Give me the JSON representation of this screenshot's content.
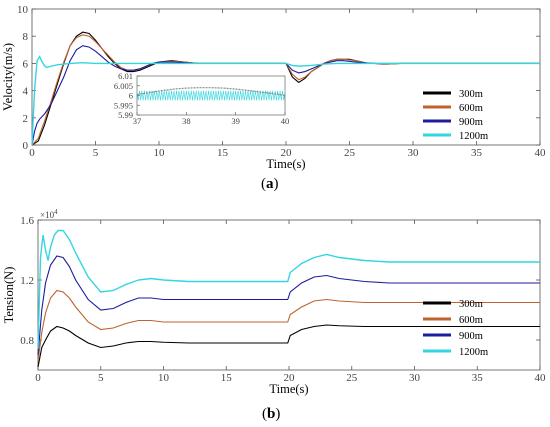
{
  "chart_data": [
    {
      "type": "line",
      "panel_label": "(a)",
      "panel_letter": "a",
      "xlabel": "Time(s)",
      "ylabel": "Velocity(m/s)",
      "xlim": [
        0,
        40
      ],
      "ylim": [
        0,
        10
      ],
      "xticks": [
        "0",
        "5",
        "10",
        "15",
        "20",
        "25",
        "30",
        "35",
        "40"
      ],
      "yticks": [
        "0",
        "2",
        "4",
        "6",
        "8",
        "10"
      ],
      "grid": false,
      "legend_position": "lower-right",
      "series": [
        {
          "name": "300m",
          "color": "#000000",
          "x": [
            0.0,
            0.5,
            1.0,
            1.5,
            2.0,
            2.5,
            3.0,
            3.5,
            4.0,
            4.5,
            5.0,
            5.5,
            6.0,
            6.5,
            7.0,
            7.5,
            8.0,
            8.5,
            9.0,
            9.5,
            10.0,
            11.0,
            12.0,
            13.0,
            14.0,
            15.0,
            16.0,
            17.0,
            18.0,
            19.0,
            20.0,
            20.5,
            21.0,
            21.5,
            22.0,
            22.5,
            23.0,
            23.5,
            24.0,
            24.5,
            25.0,
            25.5,
            26.0,
            26.5,
            27.0,
            27.5,
            28.0,
            29.0,
            30.0,
            32.0,
            35.0,
            38.0,
            40.0
          ],
          "y": [
            0.0,
            0.3,
            1.5,
            3.0,
            4.5,
            6.0,
            7.3,
            8.0,
            8.3,
            8.2,
            7.7,
            7.1,
            6.5,
            6.0,
            5.6,
            5.4,
            5.4,
            5.5,
            5.7,
            5.9,
            6.1,
            6.2,
            6.1,
            6.0,
            6.0,
            6.0,
            6.0,
            6.0,
            6.0,
            6.0,
            6.0,
            5.0,
            4.6,
            4.9,
            5.4,
            5.7,
            6.0,
            6.2,
            6.3,
            6.3,
            6.3,
            6.2,
            6.1,
            6.0,
            6.0,
            5.95,
            5.95,
            6.0,
            6.0,
            6.0,
            6.0,
            6.0,
            6.0
          ]
        },
        {
          "name": "600m",
          "color": "#c0622e",
          "x": [
            0.0,
            0.5,
            1.0,
            1.5,
            2.0,
            2.5,
            3.0,
            3.5,
            4.0,
            4.5,
            5.0,
            5.5,
            6.0,
            6.5,
            7.0,
            7.5,
            8.0,
            8.5,
            9.0,
            9.5,
            10.0,
            11.0,
            12.0,
            13.0,
            14.0,
            15.0,
            16.0,
            17.0,
            18.0,
            19.0,
            20.0,
            20.5,
            21.0,
            21.5,
            22.0,
            22.5,
            23.0,
            23.5,
            24.0,
            24.5,
            25.0,
            25.5,
            26.0,
            26.5,
            27.0,
            27.5,
            28.0,
            29.0,
            30.0,
            32.0,
            35.0,
            38.0,
            40.0
          ],
          "y": [
            0.0,
            0.5,
            1.8,
            3.2,
            4.7,
            6.1,
            7.3,
            7.9,
            8.1,
            8.0,
            7.6,
            7.1,
            6.6,
            6.1,
            5.7,
            5.5,
            5.5,
            5.6,
            5.8,
            6.0,
            6.1,
            6.15,
            6.1,
            6.0,
            6.0,
            6.0,
            6.0,
            6.0,
            6.0,
            6.0,
            6.0,
            5.2,
            4.8,
            5.0,
            5.4,
            5.7,
            6.0,
            6.2,
            6.3,
            6.3,
            6.25,
            6.2,
            6.1,
            6.0,
            6.0,
            5.95,
            5.95,
            6.0,
            6.0,
            6.0,
            6.0,
            6.0,
            6.0
          ]
        },
        {
          "name": "900m",
          "color": "#1c1c9c",
          "x": [
            0.0,
            0.2,
            0.4,
            0.6,
            1.0,
            1.5,
            2.0,
            2.5,
            3.0,
            3.5,
            4.0,
            4.5,
            5.0,
            5.5,
            6.0,
            6.5,
            7.0,
            7.5,
            8.0,
            8.5,
            9.0,
            9.5,
            10.0,
            11.0,
            12.0,
            13.0,
            14.0,
            15.0,
            16.0,
            17.0,
            18.0,
            19.0,
            20.0,
            20.5,
            21.0,
            21.5,
            22.0,
            22.5,
            23.0,
            23.5,
            24.0,
            24.5,
            25.0,
            25.5,
            26.0,
            27.0,
            28.0,
            30.0,
            32.0,
            35.0,
            38.0,
            40.0
          ],
          "y": [
            0.0,
            1.0,
            1.6,
            1.9,
            2.3,
            3.0,
            4.0,
            5.0,
            6.2,
            7.0,
            7.3,
            7.2,
            6.9,
            6.5,
            6.1,
            5.8,
            5.6,
            5.5,
            5.5,
            5.6,
            5.8,
            6.0,
            6.1,
            6.1,
            6.05,
            6.0,
            6.0,
            6.0,
            6.0,
            6.0,
            6.0,
            6.0,
            6.0,
            5.5,
            5.3,
            5.4,
            5.6,
            5.8,
            6.0,
            6.1,
            6.2,
            6.2,
            6.15,
            6.1,
            6.05,
            6.0,
            6.0,
            6.0,
            6.0,
            6.0,
            6.0,
            6.0
          ]
        },
        {
          "name": "1200m",
          "color": "#33d6e0",
          "x": [
            0.0,
            0.2,
            0.4,
            0.6,
            0.8,
            1.0,
            1.2,
            1.5,
            2.0,
            3.0,
            4.0,
            5.0,
            6.0,
            8.0,
            10.0,
            12.0,
            15.0,
            18.0,
            20.0,
            20.5,
            21.0,
            22.0,
            23.0,
            24.0,
            25.0,
            26.0,
            28.0,
            30.0,
            35.0,
            40.0
          ],
          "y": [
            0.0,
            4.0,
            6.2,
            6.5,
            6.1,
            5.8,
            5.7,
            5.8,
            5.9,
            6.0,
            6.05,
            6.0,
            6.0,
            6.0,
            6.0,
            6.0,
            6.0,
            6.0,
            6.0,
            5.85,
            5.8,
            5.85,
            5.95,
            6.0,
            6.0,
            6.0,
            6.0,
            6.0,
            6.0,
            6.0
          ]
        }
      ],
      "inset": {
        "xlim": [
          37,
          40
        ],
        "ylim": [
          5.99,
          6.01
        ],
        "xticks": [
          "37",
          "38",
          "39",
          "40"
        ],
        "yticks": [
          "5.99",
          "5.995",
          "6",
          "6.005",
          "6.01"
        ],
        "curve": {
          "x": [
            37.0,
            37.25,
            37.5,
            37.75,
            38.0,
            38.25,
            38.5,
            38.75,
            39.0,
            39.25,
            39.5,
            39.75,
            40.0
          ],
          "y": [
            6.0005,
            6.0015,
            6.0025,
            6.0033,
            6.0038,
            6.004,
            6.004,
            6.0038,
            6.0033,
            6.0026,
            6.0018,
            6.001,
            6.0
          ]
        },
        "oscillation": {
          "center": 6.0,
          "amplitude": 0.0025,
          "period": 0.05
        }
      }
    },
    {
      "type": "line",
      "panel_label": "(b)",
      "panel_letter": "b",
      "xlabel": "Time(s)",
      "ylabel": "Tension(N)",
      "multiplier": "×10",
      "multiplier_exp": "4",
      "xlim": [
        0,
        40
      ],
      "ylim": [
        0.6,
        1.6
      ],
      "xticks": [
        "0",
        "5",
        "10",
        "15",
        "20",
        "25",
        "30",
        "35",
        "40"
      ],
      "yticks": [
        "0.8",
        "1.2",
        "1.6"
      ],
      "grid": false,
      "legend_position": "lower-right",
      "series": [
        {
          "name": "300m",
          "color": "#000000",
          "x": [
            0.0,
            0.3,
            0.6,
            1.0,
            1.5,
            2.0,
            2.5,
            3.0,
            4.0,
            5.0,
            6.0,
            7.0,
            8.0,
            9.0,
            10.0,
            12.0,
            15.0,
            18.0,
            19.9,
            20.1,
            21.0,
            22.0,
            23.0,
            24.0,
            26.0,
            28.0,
            30.0,
            35.0,
            40.0
          ],
          "y": [
            0.62,
            0.75,
            0.8,
            0.86,
            0.89,
            0.88,
            0.86,
            0.83,
            0.78,
            0.75,
            0.76,
            0.78,
            0.79,
            0.79,
            0.785,
            0.78,
            0.78,
            0.78,
            0.78,
            0.83,
            0.87,
            0.89,
            0.9,
            0.895,
            0.89,
            0.89,
            0.89,
            0.89,
            0.89
          ]
        },
        {
          "name": "600m",
          "color": "#c0622e",
          "x": [
            0.0,
            0.3,
            0.6,
            1.0,
            1.5,
            2.0,
            2.5,
            3.0,
            4.0,
            5.0,
            6.0,
            7.0,
            8.0,
            9.0,
            10.0,
            12.0,
            15.0,
            18.0,
            19.9,
            20.1,
            21.0,
            22.0,
            23.0,
            24.0,
            26.0,
            28.0,
            30.0,
            35.0,
            40.0
          ],
          "y": [
            0.66,
            0.85,
            0.98,
            1.08,
            1.13,
            1.12,
            1.08,
            1.02,
            0.92,
            0.87,
            0.88,
            0.91,
            0.93,
            0.93,
            0.92,
            0.92,
            0.92,
            0.92,
            0.92,
            0.97,
            1.02,
            1.06,
            1.07,
            1.06,
            1.05,
            1.05,
            1.05,
            1.05,
            1.05
          ]
        },
        {
          "name": "900m",
          "color": "#1c1c9c",
          "x": [
            0.0,
            0.3,
            0.6,
            1.0,
            1.5,
            2.0,
            2.5,
            3.0,
            4.0,
            5.0,
            6.0,
            7.0,
            8.0,
            9.0,
            10.0,
            12.0,
            15.0,
            18.0,
            19.9,
            20.1,
            21.0,
            22.0,
            23.0,
            24.0,
            26.0,
            28.0,
            30.0,
            35.0,
            40.0
          ],
          "y": [
            0.7,
            1.0,
            1.18,
            1.3,
            1.36,
            1.35,
            1.29,
            1.2,
            1.07,
            1.0,
            1.01,
            1.05,
            1.08,
            1.08,
            1.07,
            1.07,
            1.07,
            1.07,
            1.07,
            1.12,
            1.18,
            1.22,
            1.23,
            1.21,
            1.19,
            1.18,
            1.18,
            1.18,
            1.18
          ]
        },
        {
          "name": "1200m",
          "color": "#33d6e0",
          "x": [
            0.0,
            0.2,
            0.4,
            0.6,
            0.8,
            1.0,
            1.3,
            1.6,
            2.0,
            2.5,
            3.0,
            4.0,
            5.0,
            6.0,
            7.0,
            8.0,
            9.0,
            10.0,
            12.0,
            15.0,
            18.0,
            19.9,
            20.1,
            21.0,
            22.0,
            23.0,
            24.0,
            26.0,
            28.0,
            30.0,
            35.0,
            40.0
          ],
          "y": [
            0.74,
            1.35,
            1.5,
            1.4,
            1.33,
            1.42,
            1.5,
            1.53,
            1.53,
            1.47,
            1.38,
            1.22,
            1.12,
            1.13,
            1.17,
            1.2,
            1.21,
            1.2,
            1.19,
            1.19,
            1.19,
            1.19,
            1.25,
            1.31,
            1.35,
            1.37,
            1.35,
            1.33,
            1.32,
            1.32,
            1.32,
            1.32
          ]
        }
      ]
    }
  ]
}
